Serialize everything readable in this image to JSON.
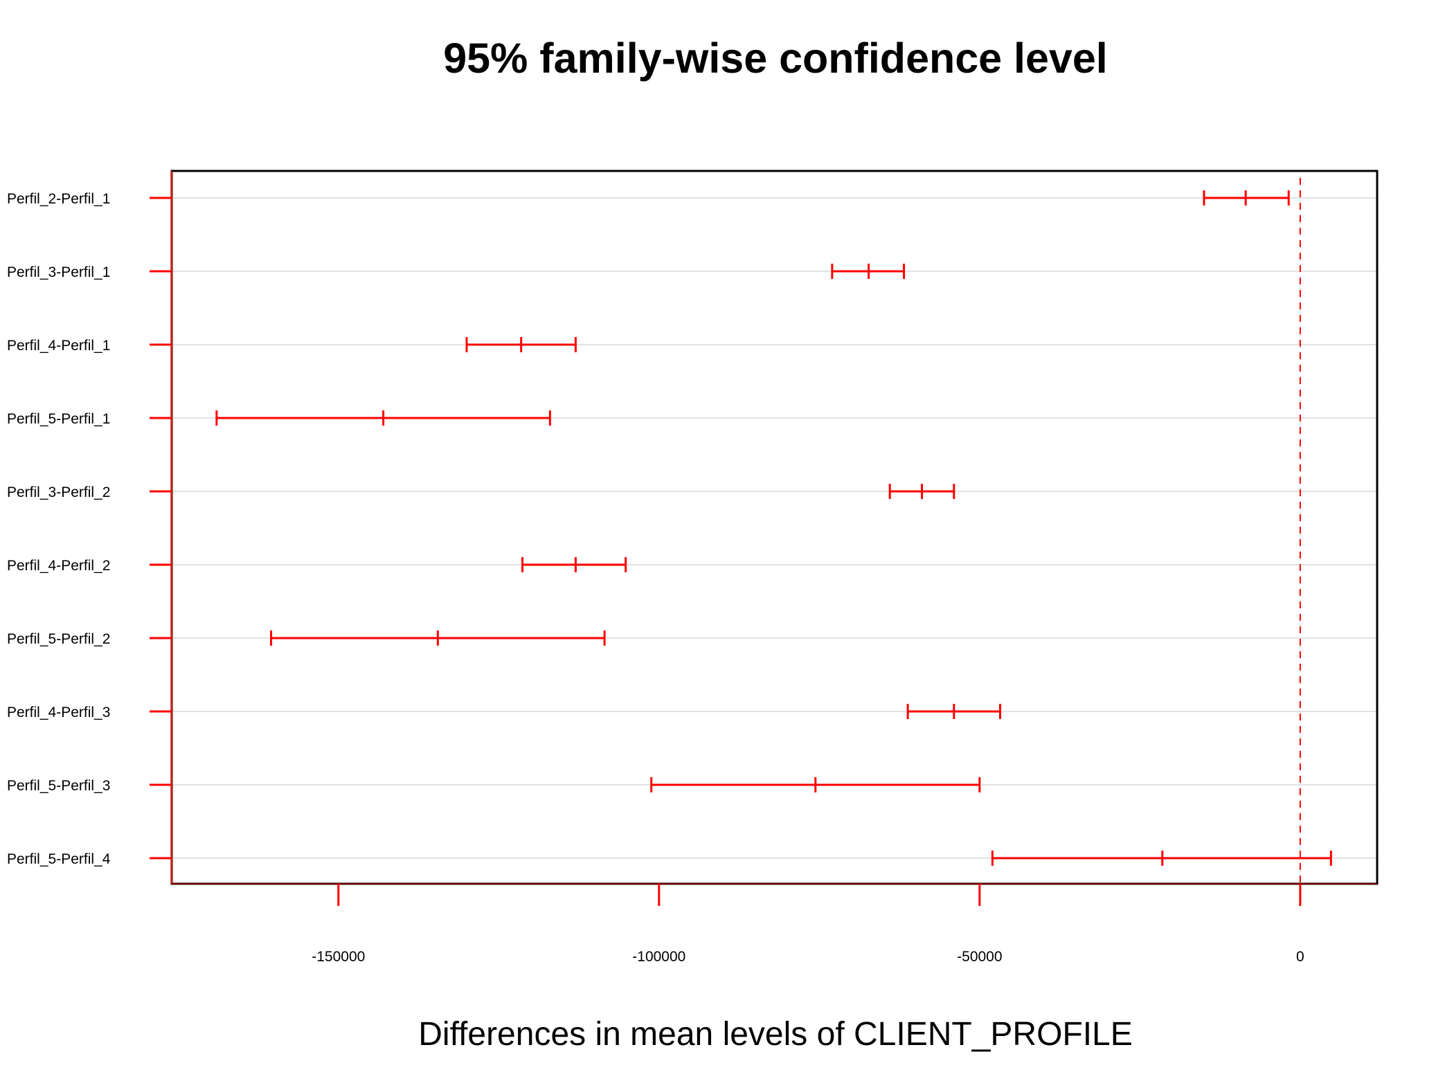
{
  "chart_data": {
    "type": "errorbar",
    "title": "95% family-wise confidence level",
    "xlabel": "Differences in mean levels of CLIENT_PROFILE",
    "ylabel": "",
    "xlim": [
      -176000,
      12000
    ],
    "x_ticks": [
      -150000,
      -100000,
      -50000,
      0
    ],
    "x_tick_labels": [
      "-150000",
      "-100000",
      "-50000",
      "0"
    ],
    "reference_line": 0,
    "grid": true,
    "colors": {
      "interval": "#ff0000",
      "grid": "#d9d9d9",
      "frame": "#000000"
    },
    "comparisons": [
      {
        "label": "Perfil_2-Perfil_1",
        "lwr": -15000,
        "diff": -8500,
        "upr": -1800
      },
      {
        "label": "Perfil_3-Perfil_1",
        "lwr": -73000,
        "diff": -67300,
        "upr": -61800
      },
      {
        "label": "Perfil_4-Perfil_1",
        "lwr": -130000,
        "diff": -121500,
        "upr": -113000
      },
      {
        "label": "Perfil_5-Perfil_1",
        "lwr": -169000,
        "diff": -143000,
        "upr": -117000
      },
      {
        "label": "Perfil_3-Perfil_2",
        "lwr": -64000,
        "diff": -59000,
        "upr": -54000
      },
      {
        "label": "Perfil_4-Perfil_2",
        "lwr": -121300,
        "diff": -113000,
        "upr": -105200
      },
      {
        "label": "Perfil_5-Perfil_2",
        "lwr": -160500,
        "diff": -134500,
        "upr": -108500
      },
      {
        "label": "Perfil_4-Perfil_3",
        "lwr": -61200,
        "diff": -54000,
        "upr": -46800
      },
      {
        "label": "Perfil_5-Perfil_3",
        "lwr": -101200,
        "diff": -75600,
        "upr": -50000
      },
      {
        "label": "Perfil_5-Perfil_4",
        "lwr": -48000,
        "diff": -21500,
        "upr": 4800
      }
    ]
  }
}
